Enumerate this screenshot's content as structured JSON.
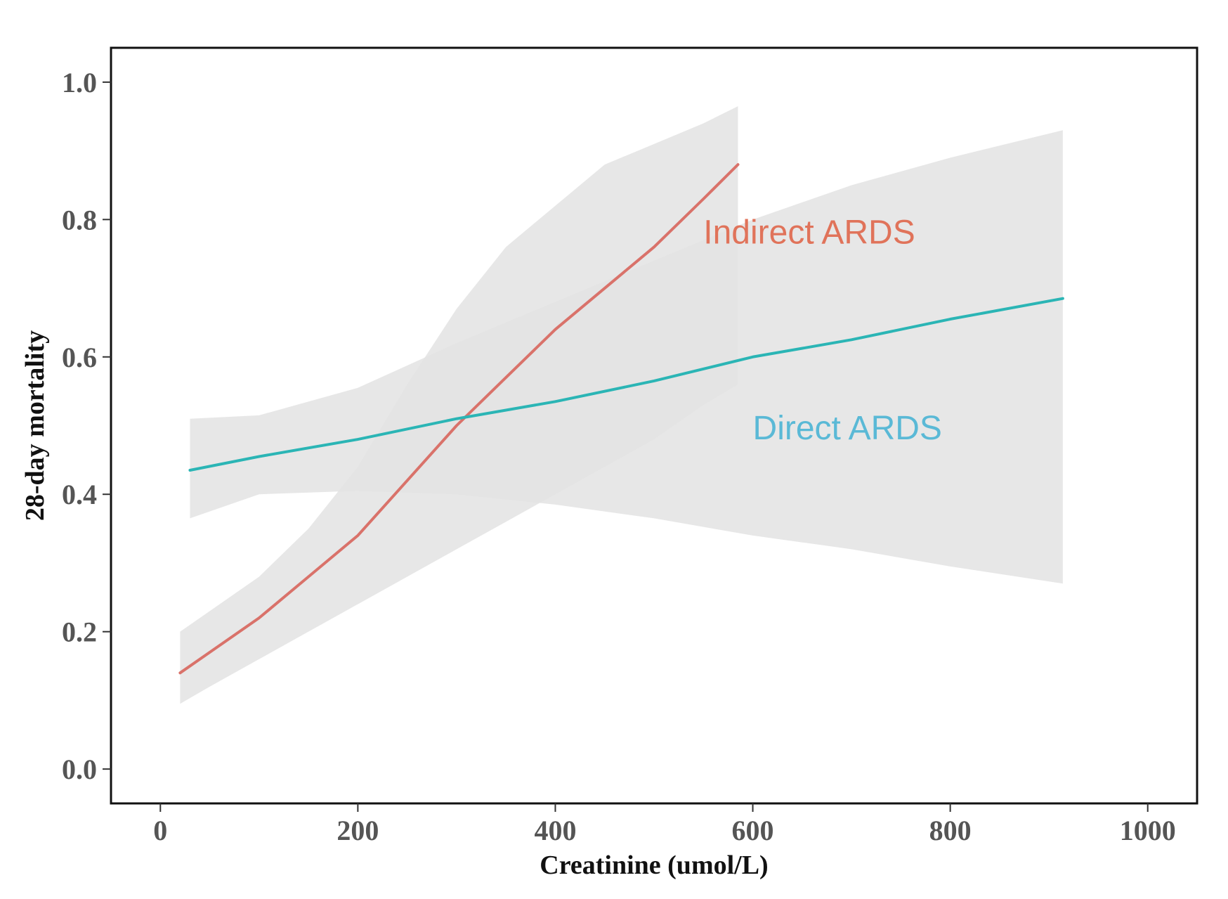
{
  "chart_data": {
    "type": "line",
    "title": "",
    "xlabel": "Creatinine (umol/L)",
    "ylabel": "28-day mortality",
    "xlim": [
      -50,
      1050
    ],
    "ylim": [
      -0.05,
      1.05
    ],
    "xticks": [
      0,
      200,
      400,
      600,
      800,
      1000
    ],
    "xtick_labels": [
      "0",
      "200",
      "400",
      "600",
      "800",
      "1000"
    ],
    "yticks": [
      0.0,
      0.2,
      0.4,
      0.6,
      0.8,
      1.0
    ],
    "ytick_labels": [
      "0.0",
      "0.2",
      "0.4",
      "0.6",
      "0.8",
      "1.0"
    ],
    "grid": false,
    "series": [
      {
        "name": "Indirect ARDS",
        "color": "#d9726a",
        "band_color": "#e3e3e3",
        "x": [
          20,
          50,
          100,
          150,
          200,
          250,
          300,
          350,
          400,
          450,
          500,
          550,
          585
        ],
        "y": [
          0.14,
          0.17,
          0.22,
          0.28,
          0.34,
          0.42,
          0.5,
          0.57,
          0.64,
          0.7,
          0.76,
          0.83,
          0.88
        ],
        "lower": [
          0.095,
          0.12,
          0.16,
          0.2,
          0.24,
          0.28,
          0.32,
          0.36,
          0.4,
          0.44,
          0.48,
          0.53,
          0.56
        ],
        "upper": [
          0.2,
          0.23,
          0.28,
          0.35,
          0.44,
          0.56,
          0.67,
          0.76,
          0.82,
          0.88,
          0.91,
          0.94,
          0.965
        ]
      },
      {
        "name": "Direct ARDS",
        "color": "#2bb5b5",
        "band_color": "#e3e3e3",
        "x": [
          30,
          100,
          200,
          300,
          400,
          500,
          600,
          700,
          800,
          914
        ],
        "y": [
          0.435,
          0.455,
          0.48,
          0.51,
          0.535,
          0.565,
          0.6,
          0.625,
          0.655,
          0.685
        ],
        "lower": [
          0.365,
          0.4,
          0.405,
          0.4,
          0.385,
          0.365,
          0.34,
          0.32,
          0.295,
          0.27
        ],
        "upper": [
          0.51,
          0.515,
          0.555,
          0.62,
          0.68,
          0.74,
          0.8,
          0.85,
          0.89,
          0.93
        ]
      }
    ],
    "annotations": [
      {
        "text": "Indirect ARDS",
        "x": 550,
        "y": 0.765,
        "color": "#e0735a"
      },
      {
        "text": "Direct ARDS",
        "x": 600,
        "y": 0.48,
        "color": "#5ab9d6"
      }
    ]
  }
}
